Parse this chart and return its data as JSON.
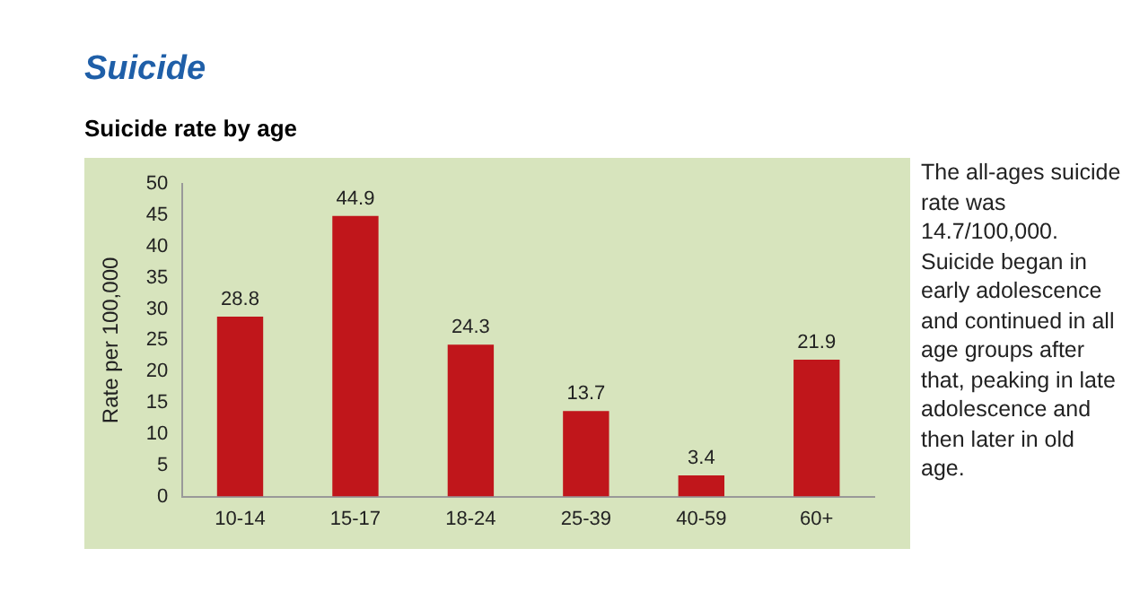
{
  "chart_data": {
    "type": "bar",
    "title": "Suicide",
    "subtitle": "Suicide rate by age",
    "ylabel": "Rate per 100,000",
    "categories": [
      "10-14",
      "15-17",
      "18-24",
      "25-39",
      "40-59",
      "60+"
    ],
    "values": [
      28.8,
      44.9,
      24.3,
      13.7,
      3.4,
      21.9
    ],
    "color": "#c0161b",
    "ylim": [
      0,
      50
    ],
    "yticks": [
      0,
      5,
      10,
      15,
      20,
      25,
      30,
      35,
      40,
      45,
      50
    ],
    "grid": false,
    "legend": false,
    "data_labels": true,
    "annotations": [
      "The all-ages suicide rate was 14.7/100,000. Suicide began in early adolescence and continued in all age groups after that, peaking in late adolescence and then later in old age."
    ]
  }
}
